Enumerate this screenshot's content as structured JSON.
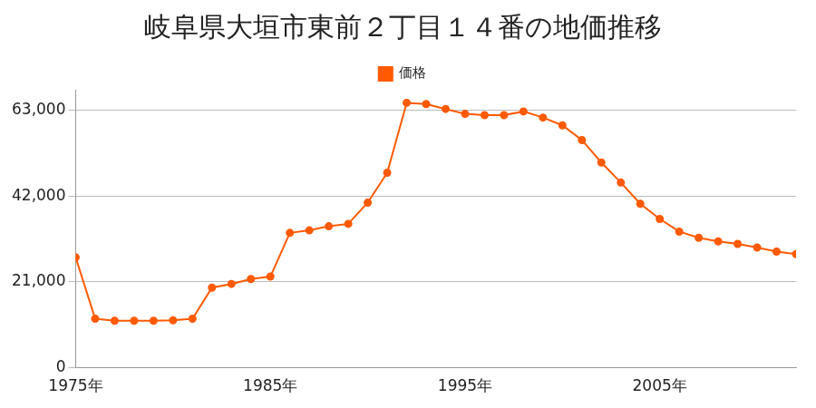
{
  "chart_data": {
    "type": "line",
    "title": "岐阜県大垣市東前２丁目１４番の地価推移",
    "categories": [
      "1975年",
      null,
      null,
      null,
      null,
      null,
      null,
      null,
      null,
      null,
      "1985年",
      null,
      null,
      null,
      null,
      null,
      null,
      null,
      null,
      null,
      "1995年",
      null,
      null,
      null,
      null,
      null,
      null,
      null,
      null,
      null,
      "2005年",
      null,
      null,
      null,
      null,
      null,
      null,
      null
    ],
    "series": [
      {
        "name": "価格",
        "color": "#ff5a00",
        "marker": "circle",
        "line_style": "solid",
        "values": [
          27000,
          12000,
          11500,
          11500,
          11500,
          11600,
          12000,
          19600,
          20500,
          21700,
          22300,
          33000,
          33600,
          34600,
          35200,
          40400,
          47700,
          64800,
          64500,
          63300,
          62100,
          61800,
          61800,
          62700,
          61200,
          59300,
          55700,
          50200,
          45300,
          40100,
          36400,
          33300,
          31800,
          30900,
          30300,
          29400,
          28400,
          27800
        ]
      }
    ],
    "ylim": [
      0,
      68000
    ],
    "yticks": [
      0,
      {
        "value": 21000,
        "label": "21,000"
      },
      {
        "value": 42000,
        "label": "42,000"
      },
      {
        "value": 63000,
        "label": "63,000"
      }
    ],
    "grid": true,
    "legend": "top"
  }
}
